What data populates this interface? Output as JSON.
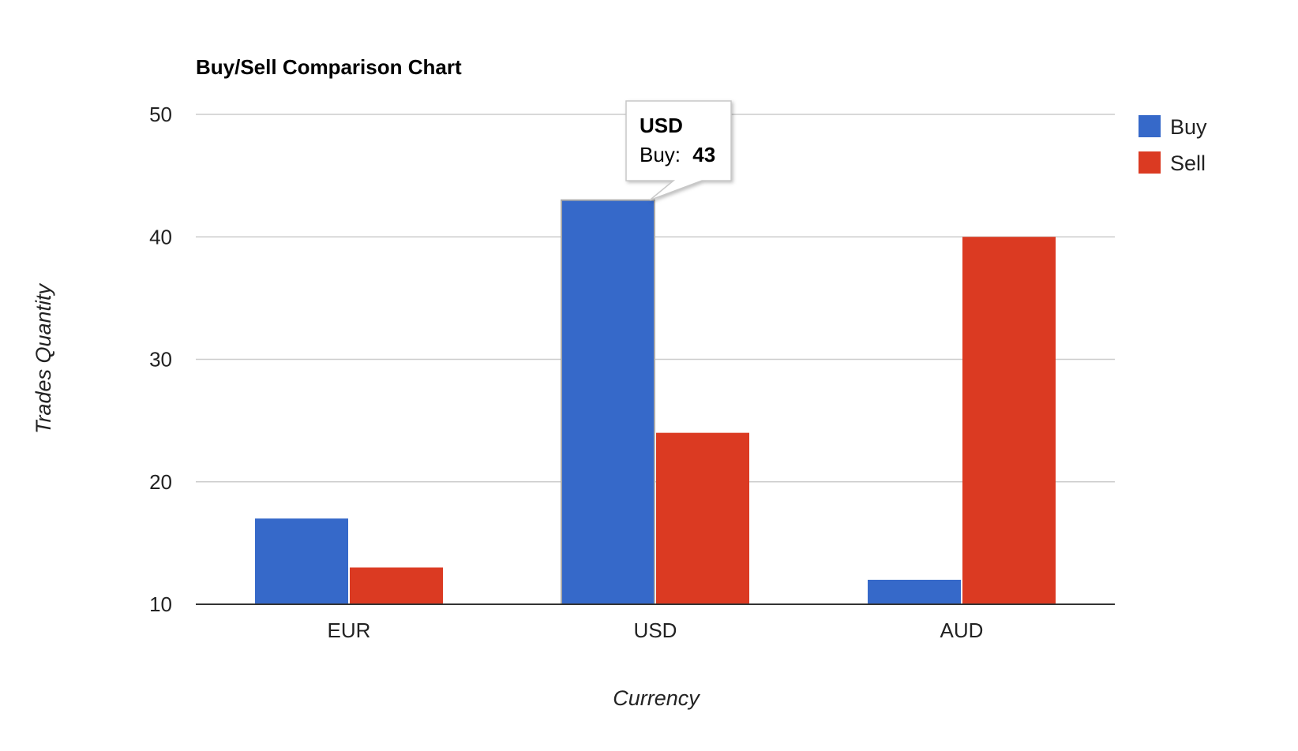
{
  "chart_data": {
    "type": "bar",
    "title": "Buy/Sell Comparison Chart",
    "xlabel": "Currency",
    "ylabel": "Trades Quantity",
    "categories": [
      "EUR",
      "USD",
      "AUD"
    ],
    "series": [
      {
        "name": "Buy",
        "values": [
          17,
          43,
          12
        ],
        "color": "#3669c9"
      },
      {
        "name": "Sell",
        "values": [
          13,
          24,
          40
        ],
        "color": "#db3a22"
      }
    ],
    "ylim": [
      10,
      50
    ],
    "yticks": [
      "10",
      "20",
      "30",
      "40",
      "50"
    ],
    "grid": true,
    "legend_position": "right",
    "tooltip": {
      "category": "USD",
      "series_label": "Buy:",
      "value": "43"
    }
  }
}
